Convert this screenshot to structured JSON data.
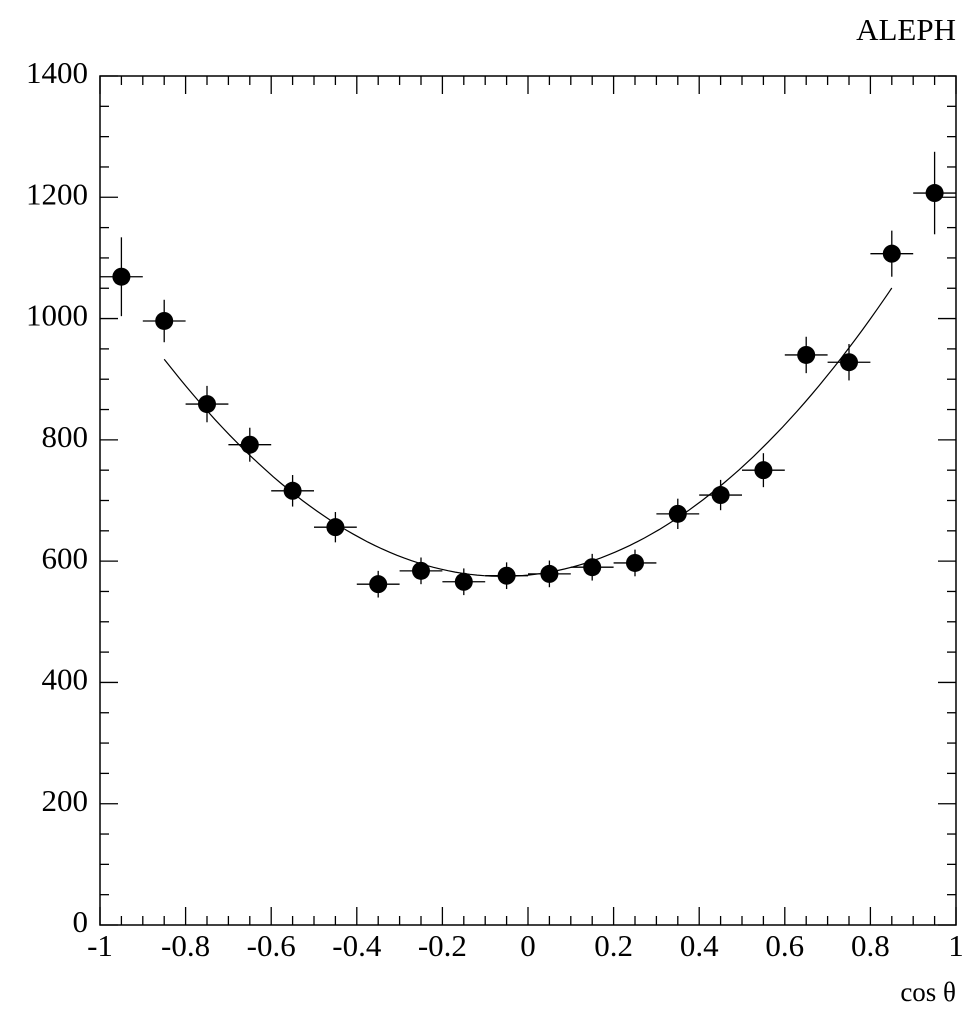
{
  "chart_data": {
    "type": "errorbar",
    "title": "ALEPH",
    "x_label": "cos θ",
    "x": [
      -0.95,
      -0.85,
      -0.75,
      -0.65,
      -0.55,
      -0.45,
      -0.35,
      -0.25,
      -0.15,
      -0.05,
      0.05,
      0.15,
      0.25,
      0.35,
      0.45,
      0.55,
      0.65,
      0.75,
      0.85,
      0.95
    ],
    "xerr": 0.05,
    "values": [
      1069,
      996,
      859,
      792,
      716,
      656,
      562,
      584,
      566,
      576,
      579,
      590,
      597,
      678,
      709,
      750,
      940,
      928,
      1107,
      1207
    ],
    "errors": [
      65,
      35,
      30,
      28,
      26,
      25,
      22,
      22,
      22,
      22,
      22,
      22,
      22,
      25,
      25,
      28,
      30,
      30,
      38,
      68
    ],
    "color": "#000000",
    "fit": {
      "coefficients": [
        577,
        69,
        574
      ],
      "range": [
        -0.85,
        0.85
      ]
    },
    "xlim": [
      -1,
      1
    ],
    "xticks": [
      -1,
      -0.8,
      -0.6,
      -0.4,
      -0.2,
      0,
      0.2,
      0.4,
      0.6,
      0.8,
      1
    ],
    "ylim": [
      0,
      1400
    ],
    "yticks": [
      0,
      200,
      400,
      600,
      800,
      1000,
      1200,
      1400
    ]
  }
}
